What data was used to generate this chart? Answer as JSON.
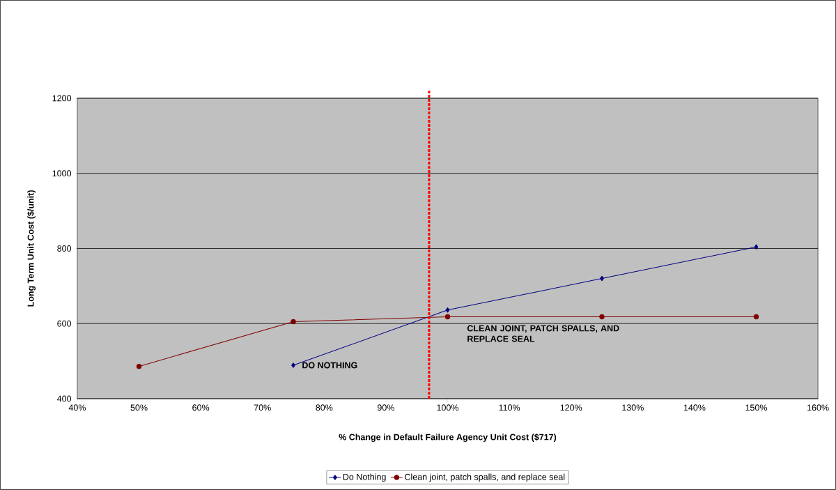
{
  "chart_data": {
    "type": "line",
    "xlabel": "% Change in Default Failure Agency Unit Cost ($717)",
    "ylabel": "Long Term Unit Cost ($/unit)",
    "x": [
      50,
      75,
      100,
      125,
      150
    ],
    "series": [
      {
        "name": "Do Nothing",
        "color": "#000080",
        "marker": "diamond",
        "values": [
          null,
          489,
          636,
          720,
          804
        ]
      },
      {
        "name": "Clean joint, patch spalls, and replace seal",
        "color": "#800000",
        "marker": "circle",
        "values": [
          486,
          605,
          618,
          618,
          618
        ]
      }
    ],
    "xlim": [
      40,
      160
    ],
    "xticks": [
      {
        "value": 40,
        "label": "40%"
      },
      {
        "value": 50,
        "label": "50%"
      },
      {
        "value": 60,
        "label": "60%"
      },
      {
        "value": 70,
        "label": "70%"
      },
      {
        "value": 80,
        "label": "80%"
      },
      {
        "value": 90,
        "label": "90%"
      },
      {
        "value": 100,
        "label": "100%"
      },
      {
        "value": 110,
        "label": "110%"
      },
      {
        "value": 120,
        "label": "120%"
      },
      {
        "value": 130,
        "label": "130%"
      },
      {
        "value": 140,
        "label": "140%"
      },
      {
        "value": 150,
        "label": "150%"
      },
      {
        "value": 160,
        "label": "160%"
      }
    ],
    "ylim": [
      400,
      1200
    ],
    "yticks": [
      400,
      600,
      800,
      1000,
      1200
    ],
    "grid": "y",
    "legend": "bottom",
    "line_style": "solid",
    "ref_lines": [
      {
        "axis": "x",
        "value": 97,
        "color": "#ff0000",
        "line_style": "dotted"
      }
    ],
    "annotations": [
      {
        "text": "DO NOTHING",
        "x": 75,
        "y": 489
      },
      "CLEAN JOINT, PATCH SPALLS, AND REPLACE SEAL"
    ]
  }
}
